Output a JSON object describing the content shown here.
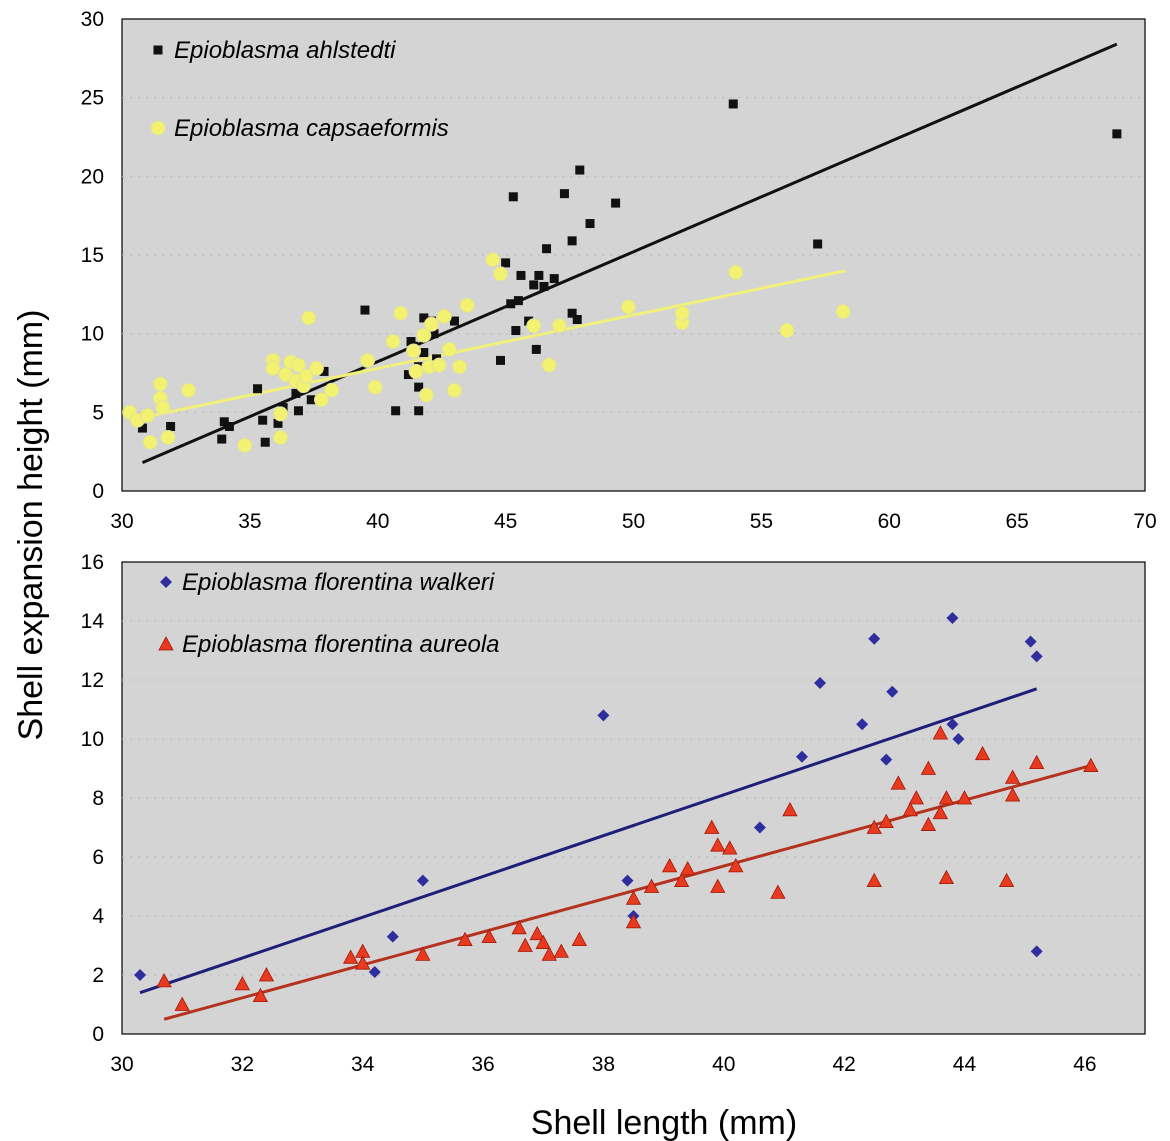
{
  "figure": {
    "ylabel": "Shell expansion height (mm)",
    "xlabel": "Shell length (mm)"
  },
  "chart_data": [
    {
      "type": "scatter",
      "title": "",
      "xlim": [
        30,
        70
      ],
      "ylim": [
        0,
        30
      ],
      "xticks": [
        30,
        35,
        40,
        45,
        50,
        55,
        60,
        65,
        70
      ],
      "yticks": [
        0,
        5,
        10,
        15,
        20,
        25,
        30
      ],
      "legend_position": "top-left",
      "grid": true,
      "series": [
        {
          "name": "Epioblasma ahlstedti",
          "marker": "square",
          "color": "#111111",
          "points": [
            [
              30.8,
              4.0
            ],
            [
              31.9,
              4.1
            ],
            [
              33.9,
              3.3
            ],
            [
              34.0,
              4.4
            ],
            [
              34.2,
              4.1
            ],
            [
              35.3,
              6.5
            ],
            [
              35.5,
              4.5
            ],
            [
              35.6,
              3.1
            ],
            [
              36.1,
              4.3
            ],
            [
              36.3,
              5.3
            ],
            [
              36.8,
              6.2
            ],
            [
              36.9,
              5.1
            ],
            [
              37.4,
              5.8
            ],
            [
              37.9,
              7.6
            ],
            [
              39.5,
              11.5
            ],
            [
              40.7,
              5.1
            ],
            [
              41.2,
              7.4
            ],
            [
              41.3,
              9.5
            ],
            [
              41.4,
              9.2
            ],
            [
              41.6,
              5.1
            ],
            [
              41.6,
              6.6
            ],
            [
              41.6,
              7.9
            ],
            [
              41.8,
              11.0
            ],
            [
              41.8,
              8.8
            ],
            [
              42.1,
              10.8
            ],
            [
              42.2,
              10.0
            ],
            [
              42.3,
              8.4
            ],
            [
              43.0,
              10.8
            ],
            [
              44.8,
              8.3
            ],
            [
              45.0,
              14.5
            ],
            [
              45.2,
              11.9
            ],
            [
              45.3,
              18.7
            ],
            [
              45.4,
              10.2
            ],
            [
              45.5,
              12.1
            ],
            [
              45.6,
              13.7
            ],
            [
              45.9,
              10.8
            ],
            [
              46.1,
              13.1
            ],
            [
              46.2,
              9.0
            ],
            [
              46.3,
              13.7
            ],
            [
              46.5,
              13.0
            ],
            [
              46.6,
              15.4
            ],
            [
              46.9,
              13.5
            ],
            [
              47.3,
              18.9
            ],
            [
              47.6,
              15.9
            ],
            [
              47.6,
              11.3
            ],
            [
              47.8,
              10.9
            ],
            [
              47.9,
              20.4
            ],
            [
              48.3,
              17.0
            ],
            [
              49.3,
              18.3
            ],
            [
              53.9,
              24.6
            ],
            [
              57.2,
              15.7
            ],
            [
              68.9,
              22.7
            ]
          ],
          "trendline": {
            "x": [
              30.8,
              68.9
            ],
            "y": [
              1.8,
              28.4
            ]
          }
        },
        {
          "name": "Epioblasma capsaeformis",
          "marker": "circle",
          "color": "#f2f270",
          "points": [
            [
              30.3,
              5.0
            ],
            [
              30.6,
              4.5
            ],
            [
              31.0,
              4.8
            ],
            [
              31.1,
              3.1
            ],
            [
              31.5,
              5.9
            ],
            [
              31.5,
              6.8
            ],
            [
              31.6,
              5.3
            ],
            [
              31.8,
              3.4
            ],
            [
              32.6,
              6.4
            ],
            [
              34.8,
              2.9
            ],
            [
              35.9,
              8.3
            ],
            [
              35.9,
              7.8
            ],
            [
              36.2,
              4.9
            ],
            [
              36.2,
              3.4
            ],
            [
              36.4,
              7.4
            ],
            [
              36.6,
              8.2
            ],
            [
              36.8,
              7.0
            ],
            [
              36.9,
              8.0
            ],
            [
              37.1,
              6.7
            ],
            [
              37.2,
              7.3
            ],
            [
              37.3,
              11.0
            ],
            [
              37.6,
              7.8
            ],
            [
              37.8,
              5.8
            ],
            [
              38.2,
              6.4
            ],
            [
              39.6,
              8.3
            ],
            [
              39.9,
              6.6
            ],
            [
              40.6,
              9.5
            ],
            [
              40.9,
              11.3
            ],
            [
              41.4,
              8.9
            ],
            [
              41.5,
              7.6
            ],
            [
              41.8,
              9.9
            ],
            [
              41.9,
              6.1
            ],
            [
              42.0,
              7.9
            ],
            [
              42.1,
              10.6
            ],
            [
              42.4,
              8.0
            ],
            [
              42.6,
              11.1
            ],
            [
              42.8,
              9.0
            ],
            [
              43.0,
              6.4
            ],
            [
              43.2,
              7.9
            ],
            [
              43.5,
              11.8
            ],
            [
              44.5,
              14.7
            ],
            [
              44.8,
              13.8
            ],
            [
              46.1,
              10.5
            ],
            [
              46.7,
              8.0
            ],
            [
              47.1,
              10.5
            ],
            [
              49.8,
              11.7
            ],
            [
              51.9,
              10.7
            ],
            [
              51.9,
              11.3
            ],
            [
              54.0,
              13.9
            ],
            [
              56.0,
              10.2
            ],
            [
              58.2,
              11.4
            ]
          ],
          "trendline": {
            "x": [
              30.3,
              58.3
            ],
            "y": [
              4.5,
              14.0
            ]
          }
        }
      ]
    },
    {
      "type": "scatter",
      "title": "",
      "xlim": [
        30,
        47
      ],
      "ylim": [
        0,
        16
      ],
      "xticks": [
        30,
        32,
        34,
        36,
        38,
        40,
        42,
        44,
        46
      ],
      "yticks": [
        0,
        2,
        4,
        6,
        8,
        10,
        12,
        14,
        16
      ],
      "legend_position": "top-left",
      "grid": true,
      "series": [
        {
          "name": "Epioblasma florentina walkeri",
          "marker": "diamond",
          "color": "#2e2e9e",
          "points": [
            [
              30.3,
              2.0
            ],
            [
              34.2,
              2.1
            ],
            [
              34.5,
              3.3
            ],
            [
              35.0,
              5.2
            ],
            [
              38.0,
              10.8
            ],
            [
              38.4,
              5.2
            ],
            [
              38.5,
              4.0
            ],
            [
              40.6,
              7.0
            ],
            [
              41.3,
              9.4
            ],
            [
              41.6,
              11.9
            ],
            [
              42.3,
              10.5
            ],
            [
              42.5,
              13.4
            ],
            [
              42.7,
              9.3
            ],
            [
              42.8,
              11.6
            ],
            [
              43.8,
              14.1
            ],
            [
              43.8,
              10.5
            ],
            [
              43.9,
              10.0
            ],
            [
              45.1,
              13.3
            ],
            [
              45.2,
              12.8
            ],
            [
              45.2,
              2.8
            ]
          ],
          "trendline": {
            "x": [
              30.3,
              45.2
            ],
            "y": [
              1.4,
              11.7
            ]
          }
        },
        {
          "name": "Epioblasma florentina aureola",
          "marker": "triangle",
          "color": "#e83a1e",
          "points": [
            [
              30.7,
              1.8
            ],
            [
              31.0,
              1.0
            ],
            [
              32.0,
              1.7
            ],
            [
              32.3,
              1.3
            ],
            [
              32.4,
              2.0
            ],
            [
              33.8,
              2.6
            ],
            [
              34.0,
              2.8
            ],
            [
              34.0,
              2.4
            ],
            [
              35.0,
              2.7
            ],
            [
              35.7,
              3.2
            ],
            [
              36.1,
              3.3
            ],
            [
              36.6,
              3.6
            ],
            [
              36.7,
              3.0
            ],
            [
              36.9,
              3.4
            ],
            [
              37.0,
              3.1
            ],
            [
              37.1,
              2.7
            ],
            [
              37.3,
              2.8
            ],
            [
              37.6,
              3.2
            ],
            [
              38.5,
              4.6
            ],
            [
              38.5,
              3.8
            ],
            [
              38.8,
              5.0
            ],
            [
              39.1,
              5.7
            ],
            [
              39.3,
              5.2
            ],
            [
              39.4,
              5.6
            ],
            [
              39.8,
              7.0
            ],
            [
              39.9,
              6.4
            ],
            [
              39.9,
              5.0
            ],
            [
              40.1,
              6.3
            ],
            [
              40.2,
              5.7
            ],
            [
              40.9,
              4.8
            ],
            [
              41.1,
              7.6
            ],
            [
              42.5,
              7.0
            ],
            [
              42.5,
              5.2
            ],
            [
              42.7,
              7.2
            ],
            [
              42.9,
              8.5
            ],
            [
              43.1,
              7.6
            ],
            [
              43.2,
              8.0
            ],
            [
              43.4,
              9.0
            ],
            [
              43.4,
              7.1
            ],
            [
              43.6,
              10.2
            ],
            [
              43.6,
              7.5
            ],
            [
              43.7,
              8.0
            ],
            [
              43.7,
              5.3
            ],
            [
              44.0,
              8.0
            ],
            [
              44.3,
              9.5
            ],
            [
              44.7,
              5.2
            ],
            [
              44.8,
              8.7
            ],
            [
              44.8,
              8.1
            ],
            [
              45.2,
              9.2
            ],
            [
              46.1,
              9.1
            ]
          ],
          "trendline": {
            "x": [
              30.7,
              46.1
            ],
            "y": [
              0.5,
              9.1
            ]
          }
        }
      ]
    }
  ]
}
